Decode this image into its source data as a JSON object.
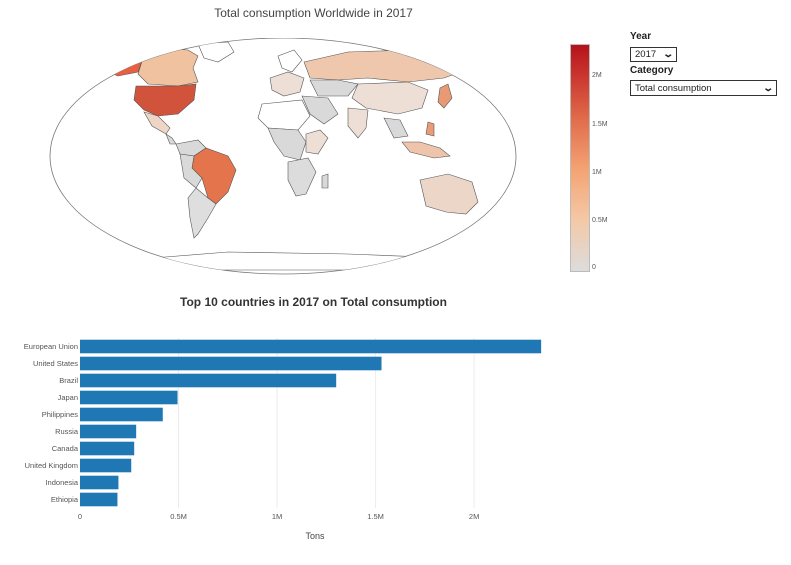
{
  "map": {
    "title": "Total consumption Worldwide in 2017",
    "colorbar_ticks": [
      "2M",
      "1.5M",
      "1M",
      "0.5M",
      "0"
    ]
  },
  "controls": {
    "year_label": "Year",
    "year_value": "2017",
    "category_label": "Category",
    "category_value": "Total consumption"
  },
  "chart_data": [
    {
      "type": "choropleth",
      "title": "Total consumption Worldwide in 2017",
      "colorscale": [
        "#dcdcdc",
        "#f4c9a8",
        "#f4a373",
        "#e06a4a",
        "#c8312c",
        "#b5121b"
      ],
      "range": [
        0,
        2350000
      ]
    },
    {
      "type": "bar",
      "orientation": "horizontal",
      "title": "Top 10 countries in 2017 on Total consumption",
      "xlabel": "Tons",
      "ylabel": "",
      "categories": [
        "European Union",
        "United States",
        "Brazil",
        "Japan",
        "Philippines",
        "Russia",
        "Canada",
        "United Kingdom",
        "Indonesia",
        "Ethiopia"
      ],
      "values": [
        2340000,
        1530000,
        1300000,
        495000,
        420000,
        285000,
        275000,
        260000,
        195000,
        190000
      ],
      "xlim": [
        0,
        2390000
      ],
      "xticks": [
        0,
        500000,
        1000000,
        1500000,
        2000000
      ],
      "xtick_labels": [
        "0",
        "0.5M",
        "1M",
        "1.5M",
        "2M"
      ],
      "bar_color": "#1f77b4",
      "grid": true
    }
  ]
}
